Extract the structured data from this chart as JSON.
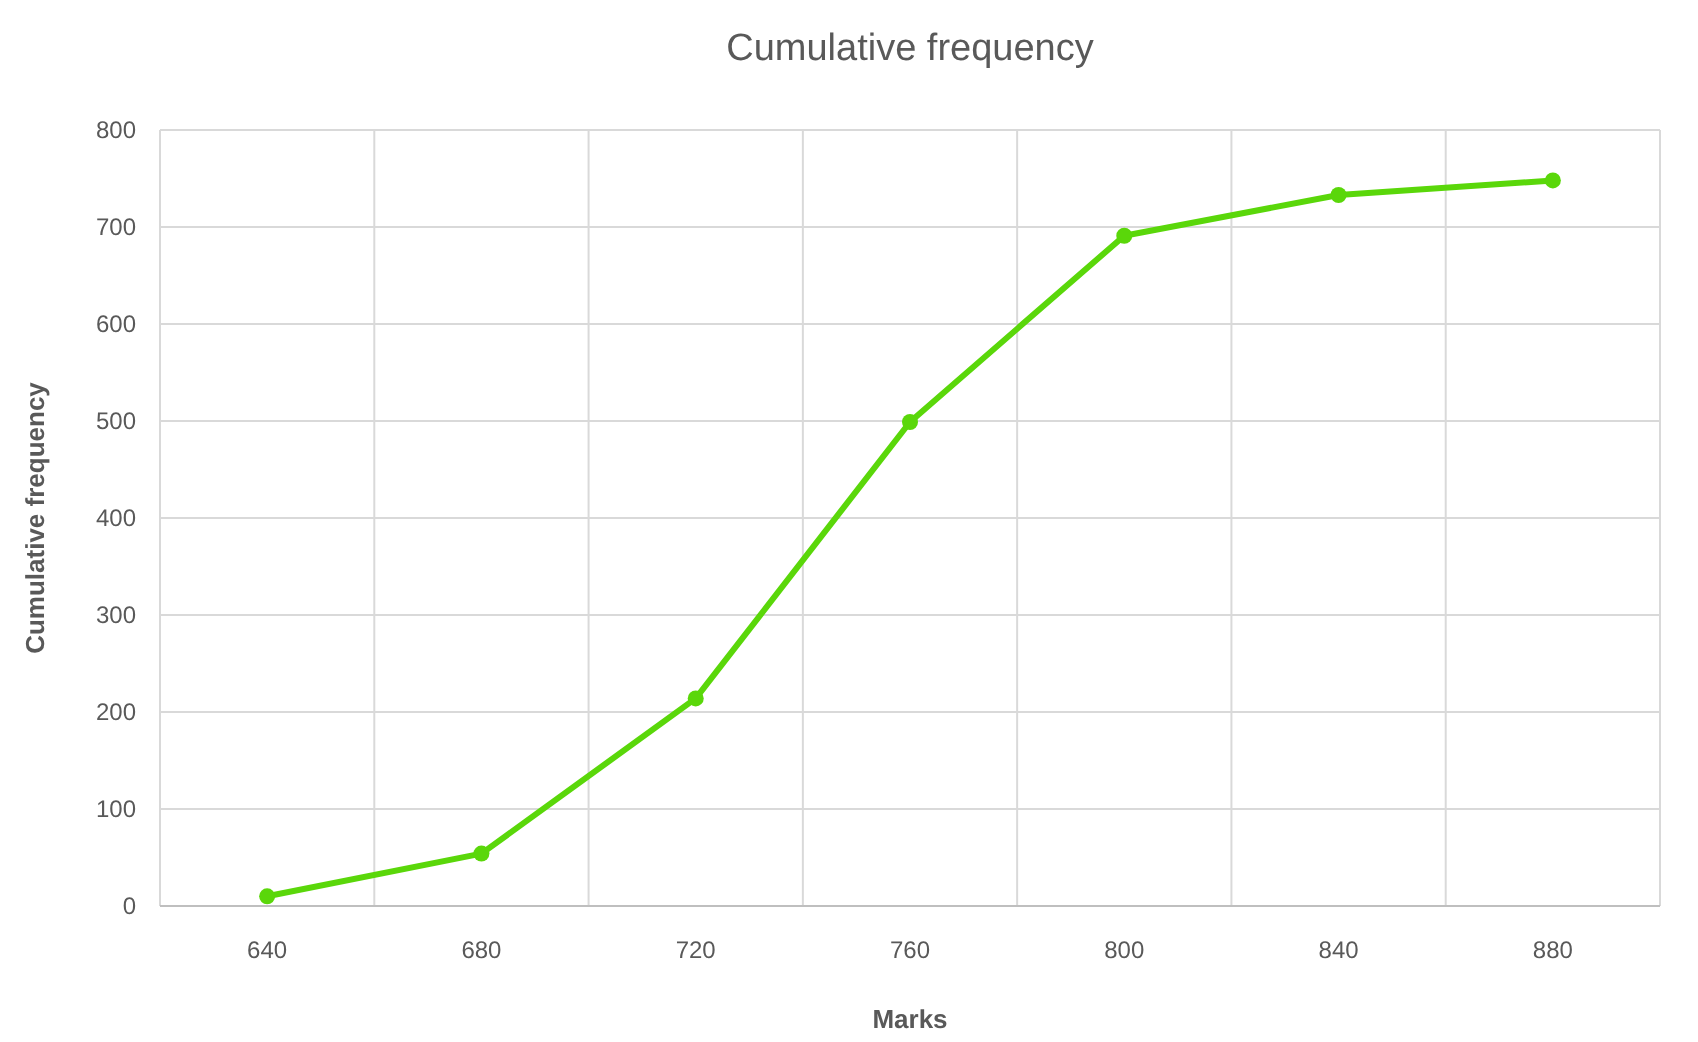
{
  "chart_data": {
    "type": "line",
    "title": "Cumulative frequency",
    "xlabel": "Marks",
    "ylabel": "Cumulative frequency",
    "categories": [
      "640",
      "680",
      "720",
      "760",
      "800",
      "840",
      "880"
    ],
    "series": [
      {
        "color": "#5ad70a",
        "values": [
          10,
          54,
          214,
          499,
          691,
          733,
          748
        ]
      }
    ],
    "ylim": [
      0,
      800
    ],
    "yticks": [
      0,
      100,
      200,
      300,
      400,
      500,
      600,
      700,
      800
    ],
    "grid": true,
    "marker": "circle"
  }
}
